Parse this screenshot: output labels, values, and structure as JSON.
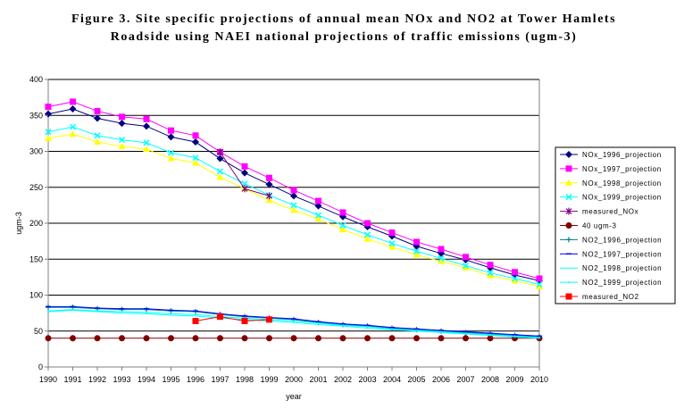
{
  "chart_data": {
    "type": "line",
    "title": "Figure 3. Site specific projections of annual mean NOx and NO2 at Tower Hamlets Roadside using NAEI national projections of traffic emissions (ugm-3)",
    "xlabel": "year",
    "ylabel": "ugm-3",
    "ylim": [
      0,
      400
    ],
    "yticks": [
      0,
      50,
      100,
      150,
      200,
      250,
      300,
      350,
      400
    ],
    "grid": true,
    "legend_position": "right",
    "x": [
      "1990",
      "1991",
      "1992",
      "1993",
      "1994",
      "1995",
      "1996",
      "1997",
      "1998",
      "1999",
      "2000",
      "2001",
      "2002",
      "2003",
      "2004",
      "2005",
      "2006",
      "2007",
      "2008",
      "2009",
      "2010"
    ],
    "series": [
      {
        "name": "NOx_1996_projection",
        "color": "#000080",
        "marker": "diamond",
        "values": [
          352,
          359,
          346,
          339,
          335,
          320,
          313,
          290,
          270,
          254,
          238,
          224,
          209,
          195,
          182,
          168,
          158,
          149,
          138,
          128,
          120
        ]
      },
      {
        "name": "NOx_1997_projection",
        "color": "#ff00ff",
        "marker": "square",
        "values": [
          362,
          369,
          356,
          348,
          345,
          329,
          322,
          299,
          279,
          263,
          246,
          231,
          215,
          200,
          187,
          174,
          164,
          153,
          142,
          132,
          123
        ]
      },
      {
        "name": "NOx_1998_projection",
        "color": "#ffff00",
        "marker": "triangle",
        "values": [
          318,
          324,
          313,
          307,
          303,
          290,
          284,
          264,
          248,
          232,
          218,
          206,
          191,
          178,
          167,
          156,
          147,
          138,
          127,
          120,
          112
        ]
      },
      {
        "name": "NOx_1999_projection",
        "color": "#00ffff",
        "marker": "x",
        "values": [
          327,
          334,
          322,
          316,
          312,
          298,
          291,
          272,
          255,
          239,
          225,
          211,
          197,
          184,
          172,
          161,
          151,
          141,
          131,
          123,
          115
        ]
      },
      {
        "name": "measured_NOx",
        "color": "#800080",
        "marker": "star",
        "values": [
          null,
          null,
          null,
          null,
          null,
          null,
          null,
          299,
          248,
          238,
          null,
          null,
          null,
          null,
          null,
          null,
          null,
          null,
          null,
          null,
          null
        ]
      },
      {
        "name": "40 ugm-3",
        "color": "#800000",
        "marker": "circle",
        "values": [
          40,
          40,
          40,
          40,
          40,
          40,
          40,
          40,
          40,
          40,
          40,
          40,
          40,
          40,
          40,
          40,
          40,
          40,
          40,
          40,
          40
        ]
      },
      {
        "name": "NO2_1996_projection",
        "color": "#008080",
        "marker": "plus",
        "values": [
          83,
          83,
          81,
          80,
          80,
          78,
          77,
          73,
          70,
          68,
          66,
          62,
          59,
          57,
          54,
          52,
          50,
          48,
          46,
          44,
          42
        ]
      },
      {
        "name": "NO2_1997_projection",
        "color": "#0000ff",
        "marker": "dash",
        "values": [
          84,
          84,
          82,
          81,
          81,
          79,
          78,
          74,
          71,
          69,
          67,
          63,
          60,
          58,
          55,
          53,
          51,
          49,
          47,
          45,
          43
        ]
      },
      {
        "name": "NO2_1998_projection",
        "color": "#00ffff",
        "marker": "none",
        "values": [
          77,
          79,
          77,
          75,
          74,
          72,
          71,
          68,
          66,
          64,
          62,
          59,
          57,
          54,
          52,
          50,
          48,
          46,
          44,
          42,
          40
        ]
      },
      {
        "name": "NO2_1999_projection",
        "color": "#00ffff",
        "marker": "dot",
        "values": [
          78,
          80,
          78,
          77,
          76,
          74,
          73,
          70,
          68,
          66,
          64,
          61,
          58,
          56,
          53,
          51,
          49,
          47,
          45,
          43,
          41
        ]
      },
      {
        "name": "measured_NO2",
        "color": "#ff0000",
        "marker": "square",
        "values": [
          null,
          null,
          null,
          null,
          null,
          null,
          64,
          70,
          64,
          66,
          null,
          null,
          null,
          null,
          null,
          null,
          null,
          null,
          null,
          null,
          null
        ]
      }
    ]
  }
}
